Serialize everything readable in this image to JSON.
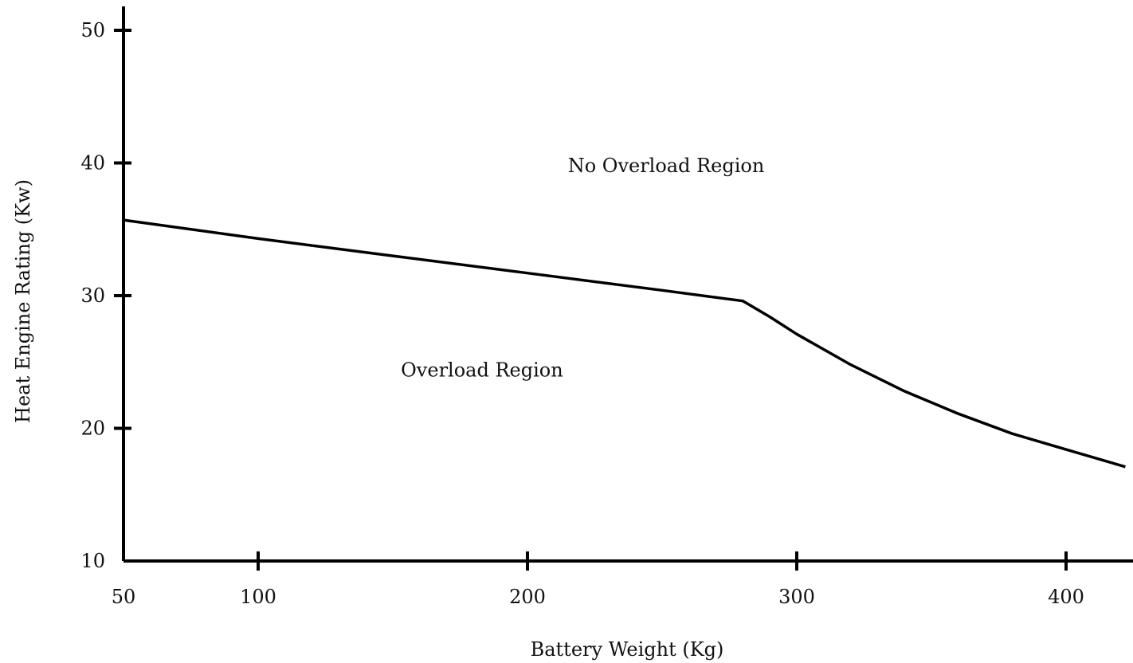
{
  "chart_data": {
    "type": "line",
    "title": "",
    "xlabel": "Battery Weight (Kg)",
    "ylabel": "Heat Engine Rating (Kw)",
    "xlim": [
      50,
      425
    ],
    "ylim": [
      10,
      52
    ],
    "grid": false,
    "xticks": [
      {
        "value": 50,
        "label": "50",
        "mark": false
      },
      {
        "value": 100,
        "label": "100",
        "mark": true
      },
      {
        "value": 200,
        "label": "200",
        "mark": true
      },
      {
        "value": 300,
        "label": "300",
        "mark": true
      },
      {
        "value": 400,
        "label": "400",
        "mark": true
      }
    ],
    "yticks": [
      {
        "value": 10,
        "label": "10",
        "mark": false
      },
      {
        "value": 20,
        "label": "20",
        "mark": true
      },
      {
        "value": 30,
        "label": "30",
        "mark": true
      },
      {
        "value": 40,
        "label": "40",
        "mark": true
      },
      {
        "value": 50,
        "label": "50",
        "mark": true
      }
    ],
    "series": [
      {
        "x": [
          50,
          100,
          150,
          200,
          250,
          280,
          290,
          300,
          320,
          340,
          360,
          380,
          400,
          422
        ],
        "y": [
          35.7,
          34.3,
          33.0,
          31.7,
          30.4,
          29.6,
          28.4,
          27.1,
          24.8,
          22.8,
          21.1,
          19.6,
          18.4,
          17.1
        ]
      }
    ],
    "annotations": [
      {
        "text": "No Overload Region",
        "x": 215,
        "y": 39.3
      },
      {
        "text": "Overload Region",
        "x": 153,
        "y": 23.9
      }
    ],
    "colors": {
      "line": "#000000",
      "text": "#111111"
    }
  }
}
